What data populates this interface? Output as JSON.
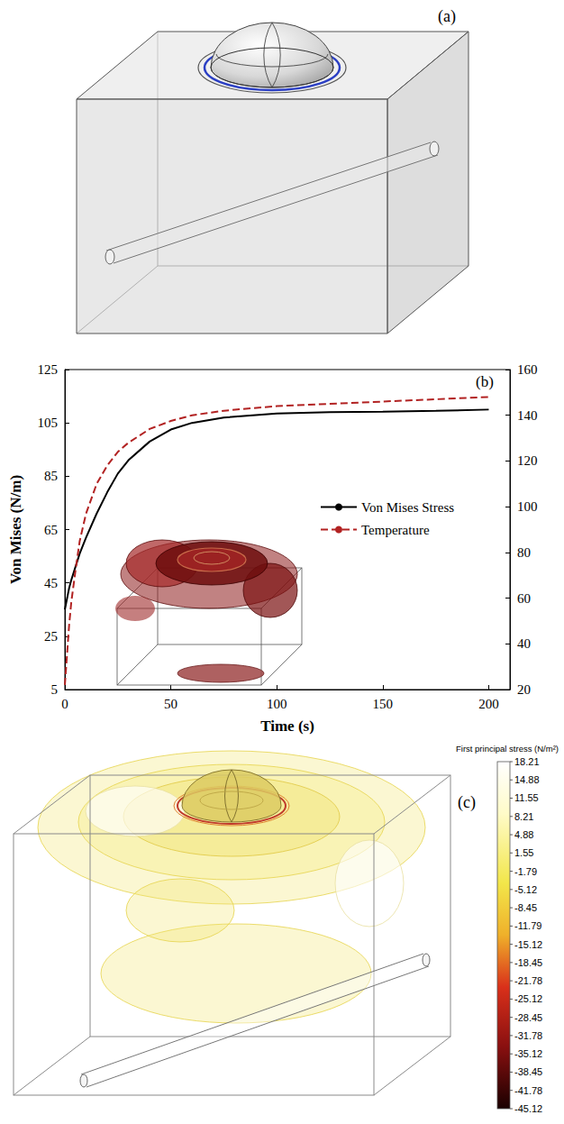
{
  "panel_a": {
    "label": "(a)"
  },
  "chart_data": {
    "type": "line",
    "panel_label": "(b)",
    "xlabel": "Time (s)",
    "ylabel": "Von Mises (N/m)",
    "x": [
      0,
      1,
      2,
      3,
      5,
      7,
      10,
      15,
      20,
      25,
      30,
      40,
      50,
      60,
      75,
      100,
      125,
      150,
      175,
      200
    ],
    "series": [
      {
        "name": "Von Mises Stress",
        "color": "#000000",
        "line_style": "solid",
        "marker": "none",
        "values": [
          35,
          39,
          43,
          46,
          51,
          56,
          62,
          71,
          79,
          86,
          91,
          98,
          102.5,
          105,
          107,
          108.5,
          109,
          109.2,
          109.5,
          110
        ]
      },
      {
        "name": "Temperature",
        "color": "#b22222",
        "line_style": "dashed",
        "marker": "none",
        "axis": "y2",
        "values": [
          22,
          35,
          48,
          58,
          72,
          85,
          97,
          110,
          118,
          124,
          128,
          134,
          137.5,
          140,
          142,
          144,
          145,
          146,
          147,
          148
        ]
      }
    ],
    "xlim": [
      0,
      210
    ],
    "xticks": [
      0,
      50,
      100,
      150,
      200
    ],
    "ylim": [
      5,
      125
    ],
    "yticks": [
      5,
      25,
      45,
      65,
      85,
      105,
      125
    ],
    "y2lim": [
      20,
      160
    ],
    "y2ticks": [
      20,
      40,
      60,
      80,
      100,
      120,
      140,
      160
    ],
    "grid": false,
    "legend": "right"
  },
  "panel_c": {
    "label": "(c)",
    "colorbar": {
      "title": "First principal stress (N/m²)",
      "range": [
        -45.12,
        18.21
      ],
      "ticks": [
        18.21,
        14.88,
        11.55,
        8.21,
        4.88,
        1.55,
        -1.79,
        -5.12,
        -8.45,
        -11.79,
        -15.12,
        -18.45,
        -21.78,
        -25.12,
        -28.45,
        -31.78,
        -35.12,
        -38.45,
        -41.78,
        -45.12
      ]
    }
  }
}
